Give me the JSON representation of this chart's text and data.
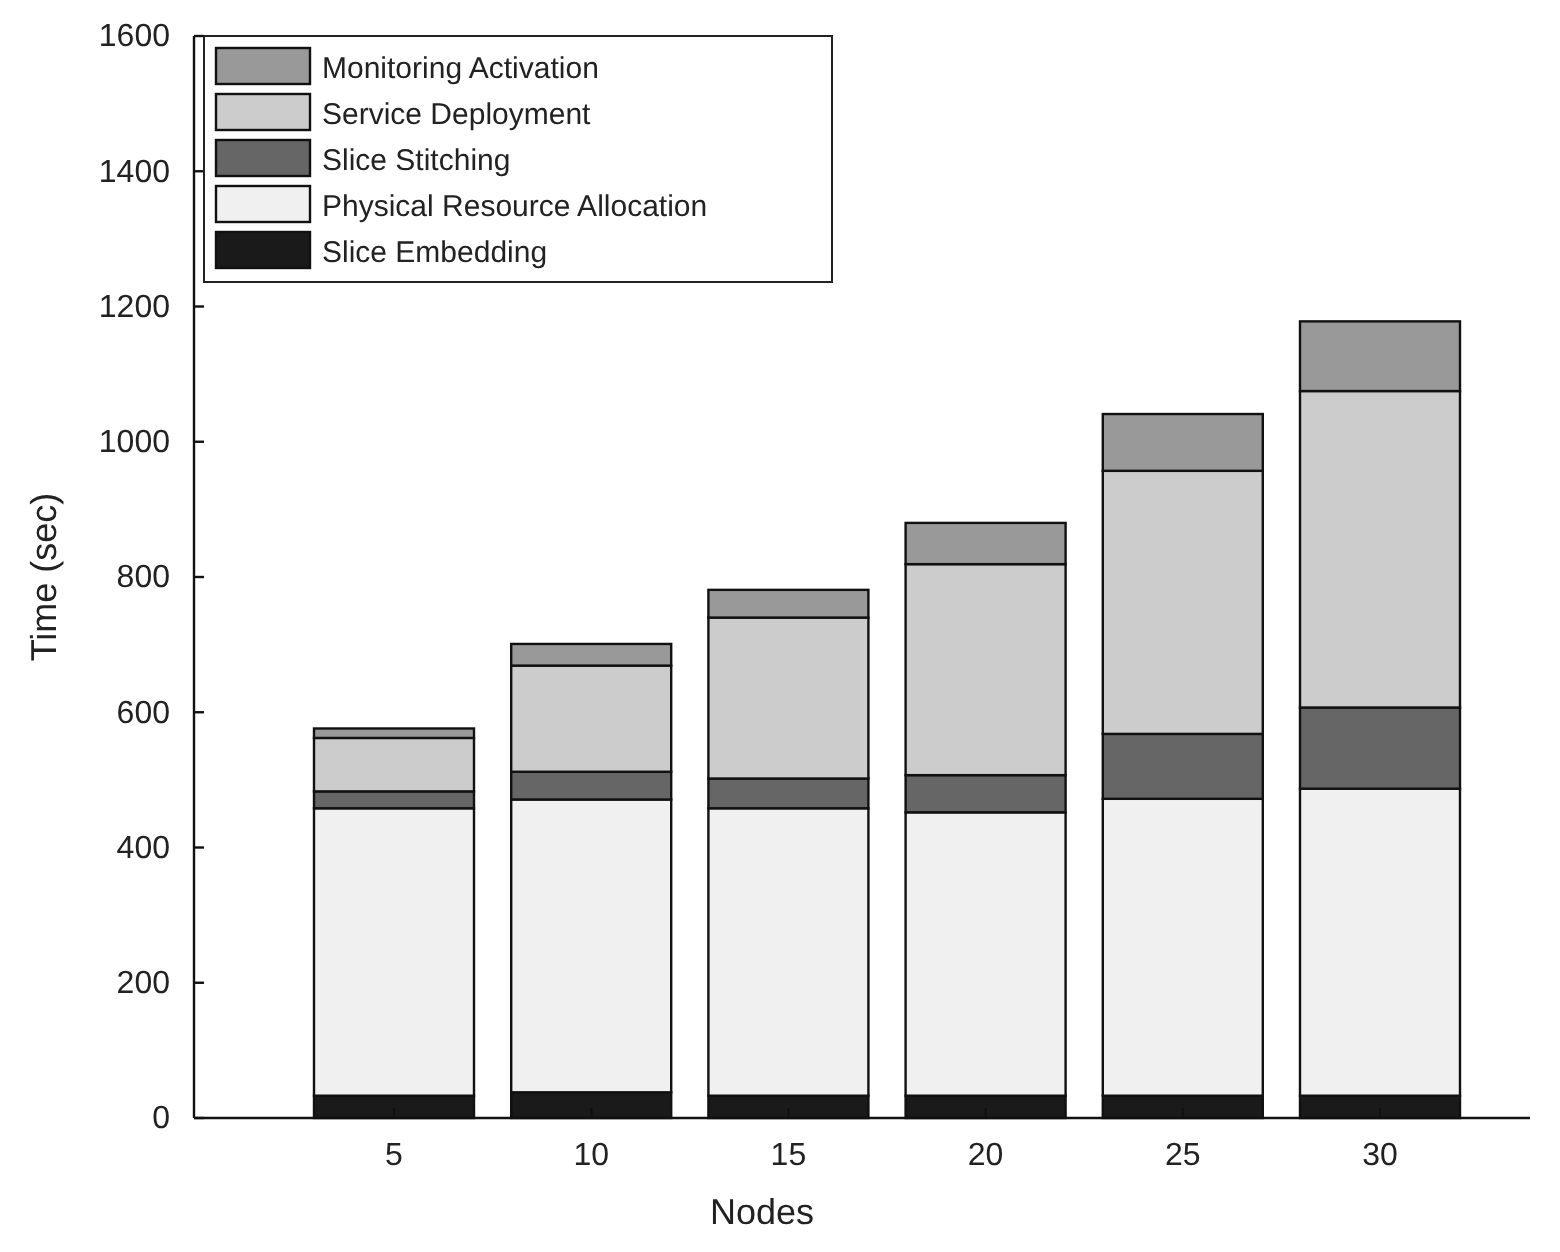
{
  "chart_data": {
    "type": "bar",
    "stacked": true,
    "xlabel": "Nodes",
    "ylabel": "Time (sec)",
    "categories": [
      "5",
      "10",
      "15",
      "20",
      "25",
      "30"
    ],
    "series": [
      {
        "name": "Slice Embedding",
        "color": "#1a1a1a",
        "values": [
          33,
          38,
          33,
          33,
          33,
          33
        ]
      },
      {
        "name": "Physical Resource Allocation",
        "color": "#f0f0f0",
        "values": [
          425,
          433,
          425,
          419,
          439,
          454
        ]
      },
      {
        "name": "Slice Stitching",
        "color": "#666666",
        "values": [
          25,
          41,
          44,
          55,
          96,
          120
        ]
      },
      {
        "name": "Service Deployment",
        "color": "#cccccc",
        "values": [
          79,
          157,
          238,
          312,
          389,
          468
        ]
      },
      {
        "name": "Monitoring Activation",
        "color": "#999999",
        "values": [
          14,
          32,
          41,
          61,
          84,
          103
        ]
      }
    ],
    "ylim": [
      0,
      1600
    ],
    "yticks": [
      0,
      200,
      400,
      600,
      800,
      1000,
      1200,
      1400,
      1600
    ],
    "legend": "top left"
  }
}
